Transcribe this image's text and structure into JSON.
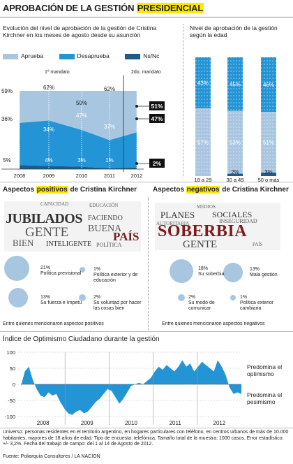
{
  "title": {
    "pre": "APROBACIÓN DE LA GESTIÓN ",
    "highlight": "PRESIDENCIAL"
  },
  "evolution": {
    "subtitle": "Evolución del nivel de aprobación de la gestión de Cristina Kirchner en los meses de agosto desde su asunción",
    "legend": [
      {
        "label": "Aprueba",
        "color": "#a9c6e0"
      },
      {
        "label": "Desaprueba",
        "color": "#2394d6"
      },
      {
        "label": "Ns/Nc",
        "color": "#1c5b8c"
      }
    ],
    "mandato1": "1º mandato",
    "mandato2": "2do. mandato"
  },
  "age": {
    "subtitle": "Nivel de aprobación de la gestión según la edad"
  },
  "chart_data": [
    {
      "type": "area",
      "x": [
        "2008",
        "2009",
        "2010",
        "2011",
        "2012"
      ],
      "series": [
        {
          "name": "Aprueba",
          "values": [
            36,
            34,
            47,
            62,
            51
          ],
          "labels": [
            "36%",
            "34%",
            "47%",
            "62%",
            "51%"
          ]
        },
        {
          "name": "Desaprueba",
          "values": [
            59,
            62,
            50,
            37,
            47
          ],
          "labels": [
            "59%",
            "62%",
            "50%",
            "37%",
            "47%"
          ]
        },
        {
          "name": "Ns/Nc",
          "values": [
            5,
            4,
            3,
            1,
            2
          ],
          "labels": [
            "5%",
            "4%",
            "3%",
            "1%",
            "2%"
          ]
        }
      ]
    },
    {
      "type": "bar",
      "categories": [
        "18 a 29",
        "30 a 49",
        "50 o más"
      ],
      "series": [
        {
          "name": "Desaprueba",
          "values": [
            43,
            45,
            46
          ],
          "labels": [
            "43%",
            "45%",
            "46%"
          ]
        },
        {
          "name": "Aprueba",
          "values": [
            57,
            53,
            51
          ],
          "labels": [
            "57%",
            "53%",
            "51%"
          ]
        },
        {
          "name": "Ns/Nc",
          "values": [
            0,
            2,
            3
          ],
          "labels": [
            "",
            "2%",
            "3%"
          ]
        }
      ]
    },
    {
      "type": "area",
      "title": "Índice de Optimismo Ciudadano durante la gestión",
      "x_ticks": [
        "2008",
        "2009",
        "2010",
        "2011",
        "2012"
      ],
      "y_ticks": [
        "100",
        "50",
        "0",
        "-50",
        "-100"
      ],
      "ylim": [
        -100,
        100
      ],
      "values": [
        -5,
        40,
        55,
        15,
        -15,
        -35,
        -40,
        -25,
        -35,
        -30,
        -55,
        -75,
        -90,
        -95,
        -85,
        -80,
        -90,
        -85,
        -70,
        -55,
        -45,
        -30,
        -15,
        -20,
        -40,
        -60,
        -45,
        -25,
        -5,
        0,
        5,
        0,
        10,
        20,
        40,
        55,
        45,
        60,
        50,
        40,
        55,
        75,
        55,
        65,
        40,
        55,
        70,
        60,
        50,
        40,
        75,
        55,
        30,
        -10,
        -30,
        -25,
        -30
      ],
      "annotations": [
        "Predomina el optimismo",
        "Predomina el pesimismo"
      ]
    }
  ],
  "positive": {
    "heading_pre": "Aspectos ",
    "heading_hl": "positivos",
    "heading_post": " de Cristina Kirchner",
    "cloud": [
      {
        "w": "JUBILADOS",
        "size": 20,
        "color": "#333"
      },
      {
        "w": "GENTE",
        "size": 19,
        "color": "#555"
      },
      {
        "w": "PAÍS",
        "size": 17,
        "color": "#7a1c1c"
      },
      {
        "w": "BUENA",
        "size": 14,
        "color": "#555"
      },
      {
        "w": "BIEN",
        "size": 13,
        "color": "#555"
      },
      {
        "w": "FACIENDO",
        "size": 10,
        "color": "#444"
      },
      {
        "w": "INTELIGENTE",
        "size": 10,
        "color": "#333"
      },
      {
        "w": "POLÍTICA",
        "size": 8,
        "color": "#555"
      },
      {
        "w": "CAPACIDAD",
        "size": 7,
        "color": "#666"
      },
      {
        "w": "EDUCACIÓN",
        "size": 7,
        "color": "#666"
      }
    ],
    "bubbles": [
      {
        "pct": "21%",
        "text": "Política previsional",
        "r": 18
      },
      {
        "pct": "1%",
        "text": "Política exterior y de educación",
        "r": 4
      },
      {
        "pct": "13%",
        "text": "Su fuerza e ímpetu",
        "r": 14
      },
      {
        "pct": "2%",
        "text": "Su voluntad por hacer las cosas bien",
        "r": 5
      }
    ],
    "note": "Entre quienes mencionaron aspectos positivos"
  },
  "negative": {
    "heading_pre": "Aspectos ",
    "heading_hl": "negativos",
    "heading_post": " de Cristina Kirchner",
    "cloud": [
      {
        "w": "SOBERBIA",
        "size": 24,
        "color": "#7a1c1c"
      },
      {
        "w": "PLANES",
        "size": 13,
        "color": "#333"
      },
      {
        "w": "SOCIALES",
        "size": 12,
        "color": "#333"
      },
      {
        "w": "GENTE",
        "size": 15,
        "color": "#444"
      },
      {
        "w": "INSEGURIDAD",
        "size": 8,
        "color": "#555"
      },
      {
        "w": "AUTORITARIA",
        "size": 7,
        "color": "#666"
      },
      {
        "w": "MEDIOS",
        "size": 7,
        "color": "#666"
      },
      {
        "w": "PAÍS",
        "size": 7,
        "color": "#666"
      }
    ],
    "bubbles": [
      {
        "pct": "18%",
        "text": "Su soberbia",
        "r": 17
      },
      {
        "pct": "13%",
        "text": "Mala gestión",
        "r": 14
      },
      {
        "pct": "2%",
        "text": "Su modo de comunicar",
        "r": 5
      },
      {
        "pct": "1%",
        "text": "Política exterior cambiaria",
        "r": 4
      }
    ],
    "note": "Entre quienes mencionaron aspectos negativos"
  },
  "optimism": {
    "title": "Índice de Optimismo Ciudadano durante la gestión",
    "optimismo": "Predomina el optimismo",
    "pesimismo": "Predomina el pesimismo"
  },
  "footer": {
    "universe": "Universo: personas residentes en el territorio argentino, en hogares particulares con teléfono, en centros urbanos de más de 10.000 habitantes, mayores de 18 años de edad. Tipo de encuesta: telefónica. Tamaño total de la muestra: 1000 casos. Error estadístico: +/- 3,2%. Fecha del trabajo de campo: del 1 al 14 de Agosto de 2012.",
    "source": "Fuente: Poliarquía Consultores / LA NACION"
  }
}
